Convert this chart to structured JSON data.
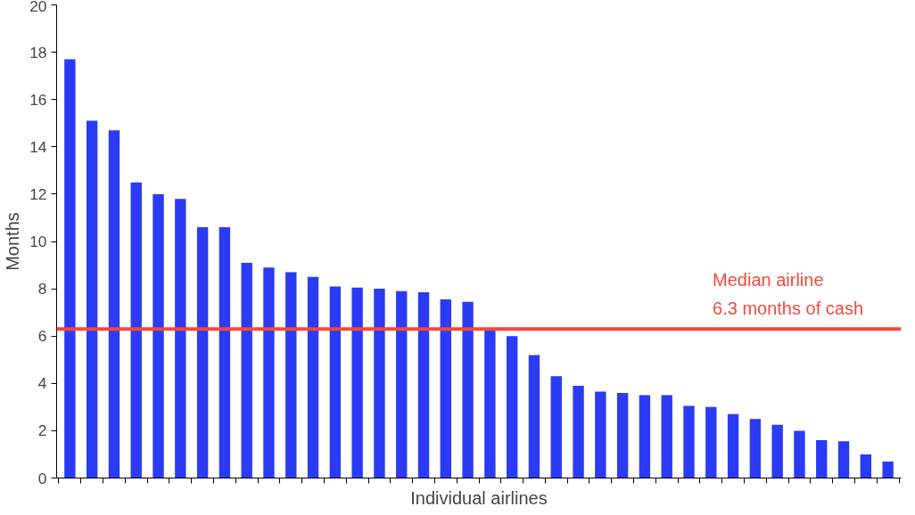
{
  "chart_data": {
    "type": "bar",
    "xlabel": "Individual airlines",
    "ylabel": "Months",
    "categories": [
      null,
      null,
      null,
      null,
      null,
      null,
      null,
      null,
      null,
      null,
      null,
      null,
      null,
      null,
      null,
      null,
      null,
      null,
      null,
      null,
      null,
      null,
      null,
      null,
      null,
      null,
      null,
      null,
      null,
      null,
      null,
      null,
      null,
      null,
      null,
      null,
      null,
      null
    ],
    "values": [
      17.7,
      15.1,
      14.7,
      12.5,
      12.0,
      11.8,
      10.6,
      10.6,
      9.1,
      8.9,
      8.7,
      8.5,
      8.1,
      8.05,
      8.0,
      7.9,
      7.85,
      7.55,
      7.45,
      6.3,
      6.0,
      5.2,
      4.3,
      3.9,
      3.65,
      3.6,
      3.5,
      3.5,
      3.05,
      3.0,
      2.7,
      2.5,
      2.25,
      2.0,
      1.6,
      1.55,
      1.0,
      0.7
    ],
    "color": "#2b3bf5",
    "ylim": [
      0,
      20
    ],
    "yticks": [
      0,
      2,
      4,
      6,
      8,
      10,
      12,
      14,
      16,
      18,
      20
    ],
    "grid": false,
    "ref_lines": [
      {
        "axis": "y",
        "value": 6.3,
        "label": "Median airline\n6.3 months of cash",
        "color": "#f04a3a"
      }
    ]
  }
}
